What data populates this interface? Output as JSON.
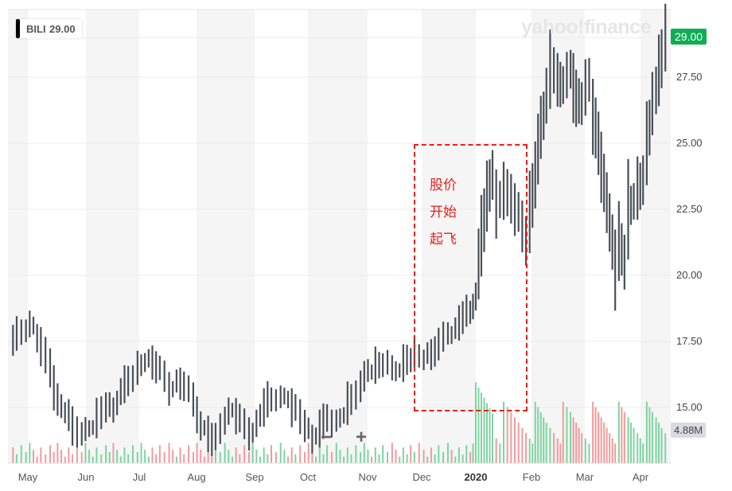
{
  "ticker": {
    "symbol": "BILI",
    "price": "29.00"
  },
  "logo": "yahoo!finance",
  "price_tag": "29.00",
  "volume_tag": "4.88M",
  "zoom_controls": {
    "zoom_out": "−",
    "zoom_in": "+"
  },
  "annotation": {
    "lines": [
      "股价",
      "开始",
      "起飞"
    ]
  },
  "colors": {
    "up": "#7ed3a0",
    "down": "#f39a9c",
    "price_bar": "#4a4f57",
    "annotation": "#e8211b",
    "last_price": "#0fae54"
  },
  "chart_data": {
    "type": "bar",
    "title": "BILI",
    "ylim": [
      13.5,
      29.5
    ],
    "yticks": [
      "29.00",
      "27.50",
      "25.00",
      "22.50",
      "20.00",
      "17.50",
      "15.00"
    ],
    "xticks": [
      "May",
      "Jun",
      "Jul",
      "Aug",
      "Sep",
      "Oct",
      "Nov",
      "Dec",
      "2020",
      "Feb",
      "Mar",
      "Apr"
    ],
    "x_unit": "days since May 1 2019",
    "price_series": [
      [
        -10,
        17.6
      ],
      [
        -6,
        17.8
      ],
      [
        -1,
        17.9
      ],
      [
        3,
        18.1
      ],
      [
        7,
        17.3
      ],
      [
        12,
        16.5
      ],
      [
        16,
        15.3
      ],
      [
        20,
        14.8
      ],
      [
        24,
        14.3
      ],
      [
        29,
        14.0
      ],
      [
        33,
        14.2
      ],
      [
        37,
        14.6
      ],
      [
        42,
        15.0
      ],
      [
        46,
        14.9
      ],
      [
        50,
        15.6
      ],
      [
        54,
        16.0
      ],
      [
        59,
        16.5
      ],
      [
        63,
        16.7
      ],
      [
        67,
        16.7
      ],
      [
        71,
        16.5
      ],
      [
        76,
        15.7
      ],
      [
        80,
        16.0
      ],
      [
        84,
        15.8
      ],
      [
        89,
        15.3
      ],
      [
        93,
        14.3
      ],
      [
        97,
        14.0
      ],
      [
        101,
        13.9
      ],
      [
        106,
        14.5
      ],
      [
        110,
        14.9
      ],
      [
        114,
        14.6
      ],
      [
        119,
        14.0
      ],
      [
        123,
        14.4
      ],
      [
        127,
        15.0
      ],
      [
        131,
        15.3
      ],
      [
        136,
        15.4
      ],
      [
        140,
        15.3
      ],
      [
        144,
        15.0
      ],
      [
        149,
        14.3
      ],
      [
        153,
        13.8
      ],
      [
        157,
        14.2
      ],
      [
        161,
        14.6
      ],
      [
        166,
        14.5
      ],
      [
        170,
        14.7
      ],
      [
        174,
        15.3
      ],
      [
        179,
        15.8
      ],
      [
        183,
        16.4
      ],
      [
        187,
        16.6
      ],
      [
        191,
        16.6
      ],
      [
        196,
        16.5
      ],
      [
        200,
        16.4
      ],
      [
        204,
        16.8
      ],
      [
        208,
        17.1
      ],
      [
        213,
        16.8
      ],
      [
        217,
        17.0
      ],
      [
        221,
        17.4
      ],
      [
        226,
        17.8
      ],
      [
        230,
        18.0
      ],
      [
        234,
        18.4
      ],
      [
        238,
        18.6
      ],
      [
        241,
        19.2
      ],
      [
        244,
        21.5
      ],
      [
        247,
        23.0
      ],
      [
        250,
        23.8
      ],
      [
        252,
        22.7
      ],
      [
        256,
        23.2
      ],
      [
        260,
        22.9
      ],
      [
        264,
        22.4
      ],
      [
        268,
        21.3
      ],
      [
        270,
        22.4
      ],
      [
        273,
        23.8
      ],
      [
        276,
        25.6
      ],
      [
        279,
        26.8
      ],
      [
        281,
        27.8
      ],
      [
        285,
        27.4
      ],
      [
        288,
        27.2
      ],
      [
        292,
        27.8
      ],
      [
        295,
        26.7
      ],
      [
        298,
        26.5
      ],
      [
        302,
        27.4
      ],
      [
        304,
        26.0
      ],
      [
        307,
        25.0
      ],
      [
        310,
        23.5
      ],
      [
        313,
        22.0
      ],
      [
        316,
        20.2
      ],
      [
        318,
        21.3
      ],
      [
        321,
        20.5
      ],
      [
        323,
        22.5
      ],
      [
        326,
        22.8
      ],
      [
        328,
        23.3
      ],
      [
        331,
        23.6
      ],
      [
        333,
        25.0
      ],
      [
        336,
        26.5
      ],
      [
        338,
        27.0
      ],
      [
        341,
        28.2
      ],
      [
        343,
        29.0
      ]
    ],
    "volume_label": "4.88M",
    "volume_ylim_millions": [
      0,
      14
    ]
  }
}
